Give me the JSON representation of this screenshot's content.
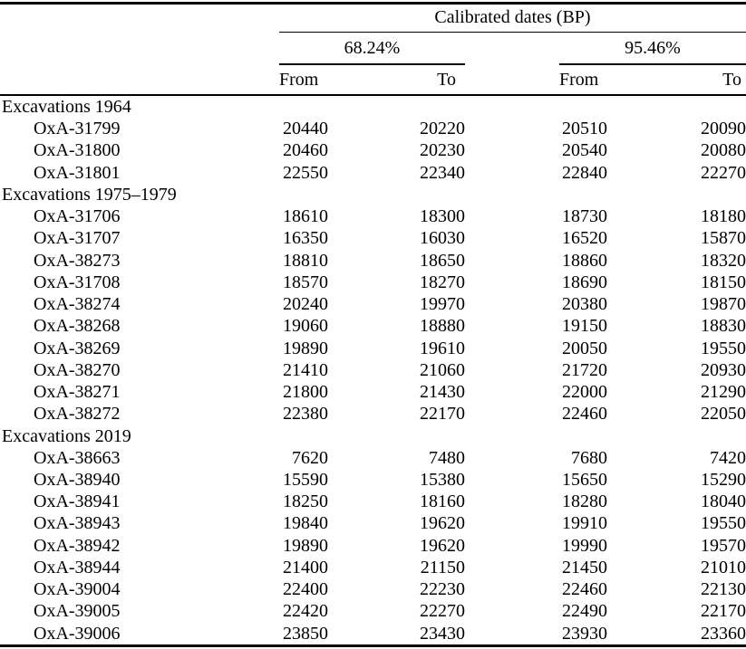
{
  "table": {
    "title": "Calibrated dates (BP)",
    "group_headers": [
      {
        "label": "68.24%"
      },
      {
        "label": "95.46%"
      }
    ],
    "column_headers": {
      "from": "From",
      "to": "To"
    },
    "sections": [
      {
        "label": "Excavations 1964",
        "rows": [
          {
            "id": "OxA-31799",
            "from68": "20440",
            "to68": "20220",
            "from95": "20510",
            "to95": "20090"
          },
          {
            "id": "OxA-31800",
            "from68": "20460",
            "to68": "20230",
            "from95": "20540",
            "to95": "20080"
          },
          {
            "id": "OxA-31801",
            "from68": "22550",
            "to68": "22340",
            "from95": "22840",
            "to95": "22270"
          }
        ]
      },
      {
        "label": "Excavations 1975–1979",
        "rows": [
          {
            "id": "OxA-31706",
            "from68": "18610",
            "to68": "18300",
            "from95": "18730",
            "to95": "18180"
          },
          {
            "id": "OxA-31707",
            "from68": "16350",
            "to68": "16030",
            "from95": "16520",
            "to95": "15870"
          },
          {
            "id": "OxA-38273",
            "from68": "18810",
            "to68": "18650",
            "from95": "18860",
            "to95": "18320"
          },
          {
            "id": "OxA-31708",
            "from68": "18570",
            "to68": "18270",
            "from95": "18690",
            "to95": "18150"
          },
          {
            "id": "OxA-38274",
            "from68": "20240",
            "to68": "19970",
            "from95": "20380",
            "to95": "19870"
          },
          {
            "id": "OxA-38268",
            "from68": "19060",
            "to68": "18880",
            "from95": "19150",
            "to95": "18830"
          },
          {
            "id": "OxA-38269",
            "from68": "19890",
            "to68": "19610",
            "from95": "20050",
            "to95": "19550"
          },
          {
            "id": "OxA-38270",
            "from68": "21410",
            "to68": "21060",
            "from95": "21720",
            "to95": "20930"
          },
          {
            "id": "OxA-38271",
            "from68": "21800",
            "to68": "21430",
            "from95": "22000",
            "to95": "21290"
          },
          {
            "id": "OxA-38272",
            "from68": "22380",
            "to68": "22170",
            "from95": "22460",
            "to95": "22050"
          }
        ]
      },
      {
        "label": "Excavations 2019",
        "rows": [
          {
            "id": "OxA-38663",
            "from68": "7620",
            "to68": "7480",
            "from95": "7680",
            "to95": "7420"
          },
          {
            "id": "OxA-38940",
            "from68": "15590",
            "to68": "15380",
            "from95": "15650",
            "to95": "15290"
          },
          {
            "id": "OxA-38941",
            "from68": "18250",
            "to68": "18160",
            "from95": "18280",
            "to95": "18040"
          },
          {
            "id": "OxA-38943",
            "from68": "19840",
            "to68": "19620",
            "from95": "19910",
            "to95": "19550"
          },
          {
            "id": "OxA-38942",
            "from68": "19890",
            "to68": "19620",
            "from95": "19990",
            "to95": "19570"
          },
          {
            "id": "OxA-38944",
            "from68": "21400",
            "to68": "21150",
            "from95": "21450",
            "to95": "21010"
          },
          {
            "id": "OxA-39004",
            "from68": "22400",
            "to68": "22230",
            "from95": "22460",
            "to95": "22130"
          },
          {
            "id": "OxA-39005",
            "from68": "22420",
            "to68": "22270",
            "from95": "22490",
            "to95": "22170"
          },
          {
            "id": "OxA-39006",
            "from68": "23850",
            "to68": "23430",
            "from95": "23930",
            "to95": "23360"
          }
        ]
      }
    ]
  },
  "colors": {
    "text": "#000000",
    "background": "#ffffff",
    "rule": "#000000"
  }
}
